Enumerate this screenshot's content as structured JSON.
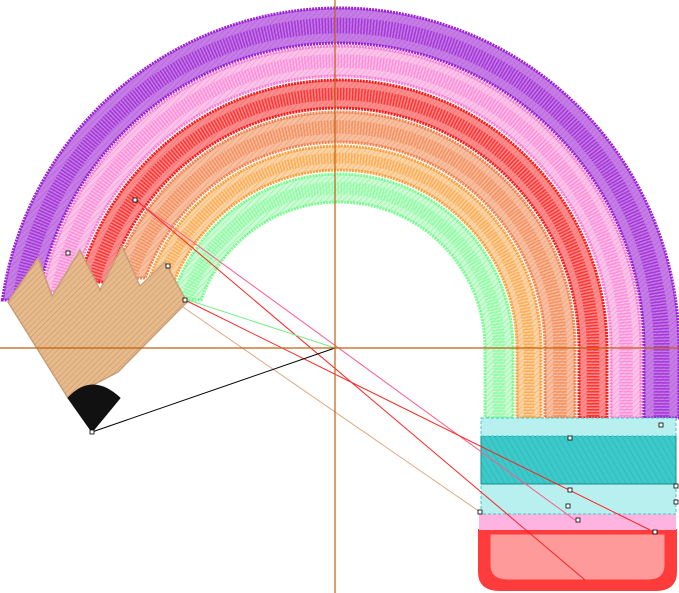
{
  "canvas": {
    "background": "#ffffff",
    "crosshair_color": "#c0610f"
  },
  "rainbow_bands": [
    {
      "name": "purple",
      "color": "#9b22d6",
      "light": "#c77be8"
    },
    {
      "name": "pink",
      "color": "#ff7fd6",
      "light": "#ffc1ec"
    },
    {
      "name": "red",
      "color": "#ff1a1a",
      "light": "#ff8a8a"
    },
    {
      "name": "orange",
      "color": "#f5844f",
      "light": "#fbbd9b"
    },
    {
      "name": "light-orange",
      "color": "#ffa240",
      "light": "#ffd39f"
    },
    {
      "name": "green",
      "color": "#7dff95",
      "light": "#c7ffd1"
    }
  ],
  "pencil": {
    "wood_color": "#e8b98a",
    "wood_stroke": "#caa07a",
    "lead_color": "#111111"
  },
  "eraser": {
    "ferrule_light": "#b8f0f0",
    "ferrule_dark": "#3cc9c9",
    "stripe_pink": "#ffb3e0",
    "eraser_color": "#ff3b3b",
    "eraser_light": "#ff9a9a"
  },
  "travel_lines": [
    {
      "color": "#ff5a8a"
    },
    {
      "color": "#ff2020"
    },
    {
      "color": "#e0a880"
    },
    {
      "color": "#77ee88"
    },
    {
      "color": "#000000"
    }
  ]
}
